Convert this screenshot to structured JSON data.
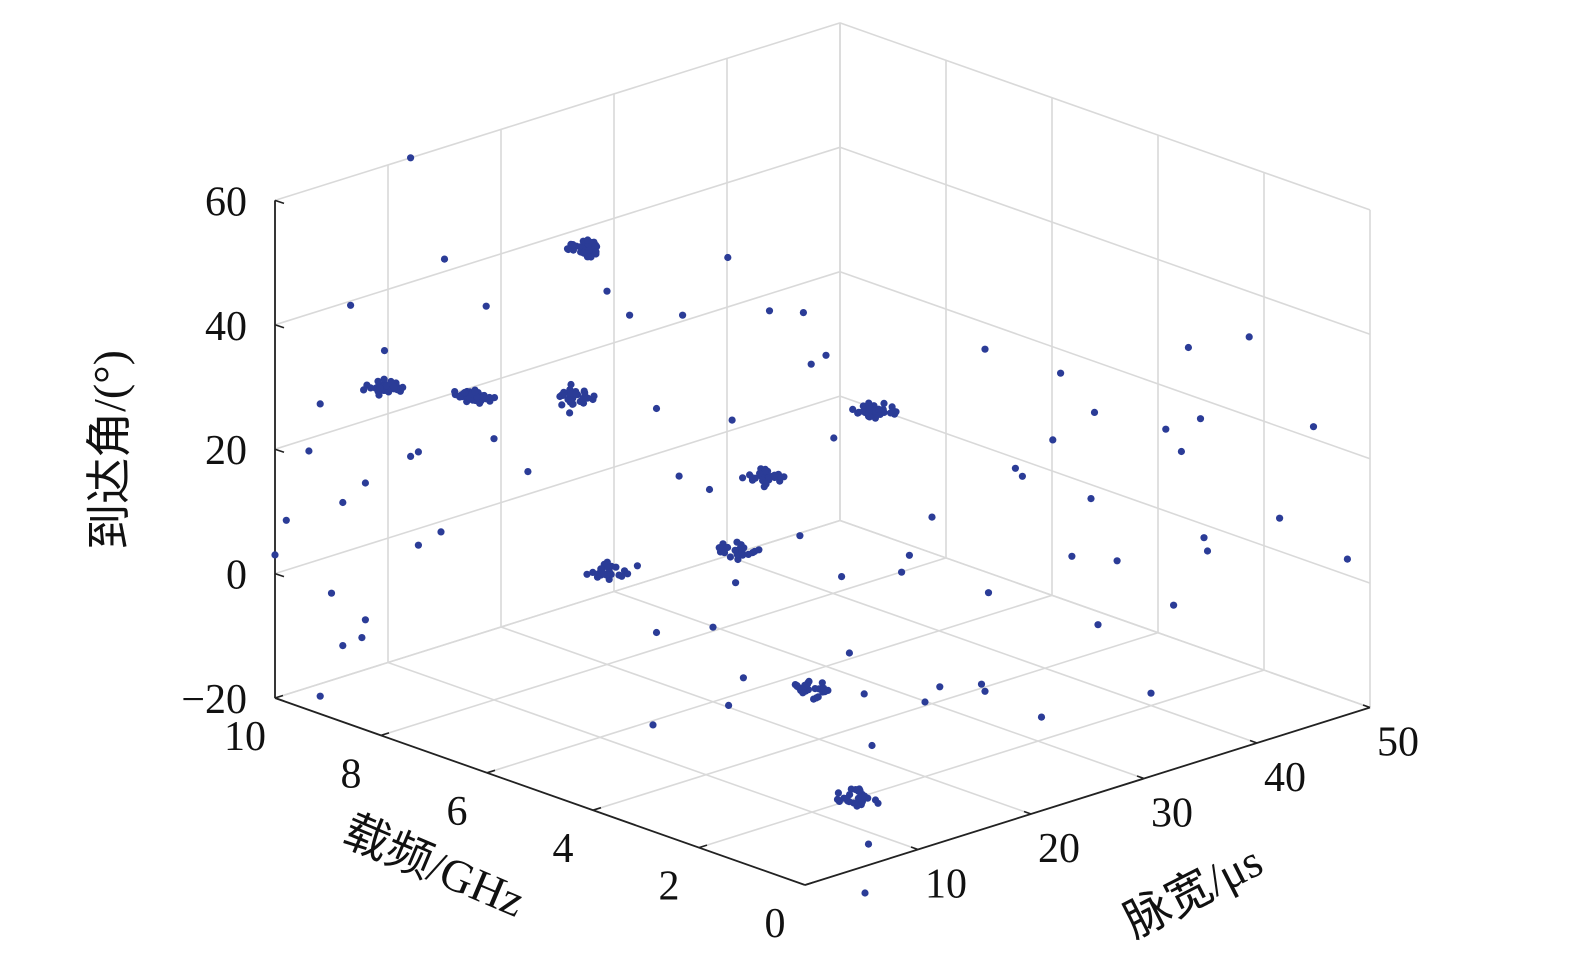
{
  "chart_data": {
    "type": "scatter",
    "subtype": "3d",
    "title": "",
    "xlabel": "脉宽/μs",
    "ylabel": "载频/GHz",
    "zlabel": "到达角/(°)",
    "xlim": [
      0,
      50
    ],
    "ylim": [
      0,
      10
    ],
    "zlim": [
      -20,
      60
    ],
    "xticks": [
      10,
      20,
      30,
      40,
      50
    ],
    "yticks": [
      0,
      2,
      4,
      6,
      8,
      10
    ],
    "zticks": [
      -20,
      0,
      20,
      40,
      60
    ],
    "grid": true,
    "marker_color": "#2b3c97",
    "series": [
      {
        "clusters": [
          {
            "x": 5,
            "y": 9,
            "z": 30,
            "count": 40
          },
          {
            "x": 8,
            "y": 8,
            "z": 30,
            "count": 40
          },
          {
            "x": 18,
            "y": 8,
            "z": 48,
            "count": 40
          },
          {
            "x": 3,
            "y": 5,
            "z": 42,
            "count": 30
          },
          {
            "x": 25,
            "y": 4,
            "z": 30,
            "count": 30
          },
          {
            "x": 8,
            "y": 3,
            "z": 20,
            "count": 25
          },
          {
            "x": 15,
            "y": 4,
            "z": 25,
            "count": 25
          },
          {
            "x": 20,
            "y": 8,
            "z": -5,
            "count": 25
          },
          {
            "x": 10,
            "y": 2,
            "z": 0,
            "count": 25
          },
          {
            "x": 14,
            "y": 2,
            "z": -20,
            "count": 25
          }
        ],
        "points": [
          {
            "x": 0,
            "y": 10,
            "z": 3
          },
          {
            "x": 1,
            "y": 10,
            "z": 8
          },
          {
            "x": 3,
            "y": 10,
            "z": 18
          },
          {
            "x": 4,
            "y": 10,
            "z": 25
          },
          {
            "x": 5,
            "y": 9,
            "z": 36
          },
          {
            "x": 2,
            "y": 9,
            "z": 45
          },
          {
            "x": 8,
            "y": 10,
            "z": 10
          },
          {
            "x": 6,
            "y": 10,
            "z": 8
          },
          {
            "x": 5,
            "y": 10,
            "z": -6
          },
          {
            "x": 6,
            "y": 10,
            "z": -15
          },
          {
            "x": 8,
            "y": 9,
            "z": 18
          },
          {
            "x": 12,
            "y": 10,
            "z": 12
          },
          {
            "x": 14,
            "y": 9,
            "z": 38
          },
          {
            "x": 15,
            "y": 10,
            "z": 42
          },
          {
            "x": 12,
            "y": 10,
            "z": 60
          },
          {
            "x": 10,
            "y": 8,
            "z": 22
          },
          {
            "x": 12,
            "y": 7,
            "z": 28
          },
          {
            "x": 13,
            "y": 8,
            "z": 15
          },
          {
            "x": 15,
            "y": 6,
            "z": 30
          },
          {
            "x": 16,
            "y": 8,
            "z": 24
          },
          {
            "x": 17,
            "y": 6,
            "z": 18
          },
          {
            "x": 8,
            "y": 9,
            "z": 3
          },
          {
            "x": 10,
            "y": 9,
            "z": 4
          },
          {
            "x": 8,
            "y": 10,
            "z": -12
          },
          {
            "x": 4,
            "y": 10,
            "z": -22
          },
          {
            "x": 3,
            "y": 9,
            "z": -9
          },
          {
            "x": 20,
            "y": 8,
            "z": 40
          },
          {
            "x": 22,
            "y": 7,
            "z": 38
          },
          {
            "x": 22,
            "y": 8,
            "z": 35
          },
          {
            "x": 17,
            "y": 5,
            "z": 30
          },
          {
            "x": 15,
            "y": 5,
            "z": 20
          },
          {
            "x": 25,
            "y": 6,
            "z": 40
          },
          {
            "x": 24,
            "y": 5,
            "z": 35
          },
          {
            "x": 26,
            "y": 7,
            "z": 45
          },
          {
            "x": 20,
            "y": 5,
            "z": 18
          },
          {
            "x": 18,
            "y": 7,
            "z": 0
          },
          {
            "x": 23,
            "y": 5,
            "z": 8
          },
          {
            "x": 22,
            "y": 4,
            "z": 5
          },
          {
            "x": 30,
            "y": 3,
            "z": 40
          },
          {
            "x": 32,
            "y": 2,
            "z": 38
          },
          {
            "x": 35,
            "y": 2,
            "z": 30
          },
          {
            "x": 38,
            "y": 1,
            "z": 25
          },
          {
            "x": 28,
            "y": 2,
            "z": 25
          },
          {
            "x": 30,
            "y": 1,
            "z": 22
          },
          {
            "x": 35,
            "y": 0,
            "z": 35
          },
          {
            "x": 45,
            "y": 0,
            "z": 28
          },
          {
            "x": 40,
            "y": 1,
            "z": 10
          },
          {
            "x": 42,
            "y": 0,
            "z": 15
          },
          {
            "x": 33,
            "y": 2,
            "z": 8
          },
          {
            "x": 37,
            "y": 2,
            "z": 5
          },
          {
            "x": 25,
            "y": 2,
            "z": -8
          },
          {
            "x": 26,
            "y": 3,
            "z": -12
          },
          {
            "x": 28,
            "y": 4,
            "z": 5
          },
          {
            "x": 30,
            "y": 4,
            "z": 10
          },
          {
            "x": 45,
            "y": 2,
            "z": 2
          },
          {
            "x": 48,
            "y": 0,
            "z": 5
          },
          {
            "x": 35,
            "y": 4,
            "z": -5
          },
          {
            "x": 32,
            "y": 5,
            "z": -3
          },
          {
            "x": 20,
            "y": 6,
            "z": -8
          },
          {
            "x": 22,
            "y": 6,
            "z": -2
          },
          {
            "x": 15,
            "y": 6,
            "z": -6
          },
          {
            "x": 18,
            "y": 5,
            "z": -12
          },
          {
            "x": 40,
            "y": 3,
            "z": -10
          },
          {
            "x": 42,
            "y": 2,
            "z": -5
          },
          {
            "x": 30,
            "y": 6,
            "z": 30
          },
          {
            "x": 28,
            "y": 6,
            "z": 38
          },
          {
            "x": 26,
            "y": 5,
            "z": 22
          },
          {
            "x": 18,
            "y": 3,
            "z": -2
          },
          {
            "x": 20,
            "y": 2,
            "z": -8
          },
          {
            "x": 12,
            "y": 4,
            "z": -10
          },
          {
            "x": 10,
            "y": 5,
            "z": -15
          },
          {
            "x": 24,
            "y": 4,
            "z": -15
          },
          {
            "x": 38,
            "y": 4,
            "z": 12
          },
          {
            "x": 46,
            "y": 3,
            "z": 18
          },
          {
            "x": 44,
            "y": 1,
            "z": 40
          },
          {
            "x": 48,
            "y": 3,
            "z": 30
          },
          {
            "x": 36,
            "y": 3,
            "z": 22
          },
          {
            "x": 15,
            "y": 2,
            "z": -28
          },
          {
            "x": 20,
            "y": 3,
            "z": -18
          },
          {
            "x": 30,
            "y": 3,
            "z": -15
          },
          {
            "x": 35,
            "y": 3,
            "z": -22
          },
          {
            "x": 40,
            "y": 2,
            "z": -18
          },
          {
            "x": 10,
            "y": 1,
            "z": -30
          }
        ]
      }
    ]
  }
}
